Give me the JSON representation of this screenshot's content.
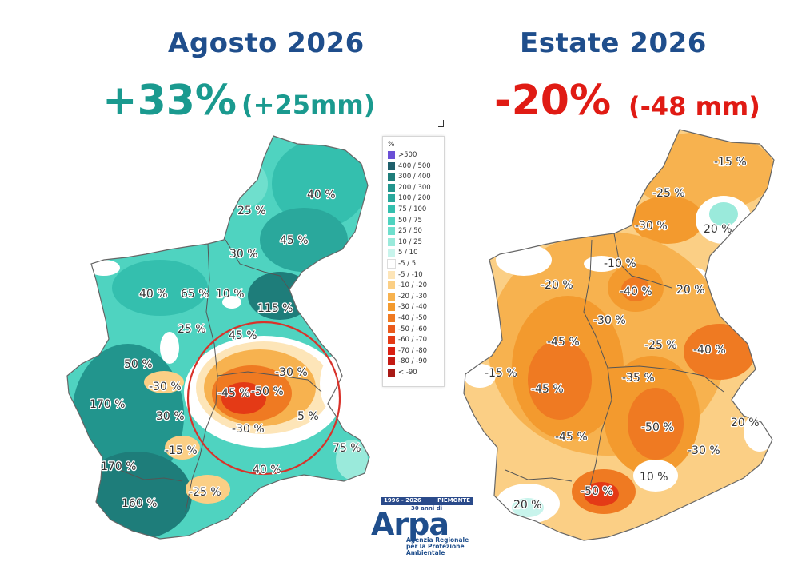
{
  "left_panel": {
    "title": "Agosto 2026",
    "headline": "+33%",
    "headline_mm": "(+25mm)",
    "labels": [
      "40 %",
      "25 %",
      "45 %",
      "30 %",
      "40 %",
      "65 %",
      "10 %",
      "115 %",
      "25 %",
      "45 %",
      "50 %",
      "-30 %",
      "-45 %",
      "-50 %",
      "-30 %",
      "170 %",
      "30 %",
      "5 %",
      "-30 %",
      "-15 %",
      "75 %",
      "170 %",
      "40 %",
      "-25 %",
      "160 %"
    ]
  },
  "right_panel": {
    "title": "Estate 2026",
    "headline": "-20%",
    "headline_mm": "(-48 mm)",
    "labels": [
      "-15 %",
      "-25 %",
      "-30 %",
      "20 %",
      "-10 %",
      "-20 %",
      "-40 %",
      "20 %",
      "-30 %",
      "-45 %",
      "-25 %",
      "-40 %",
      "-15 %",
      "-35 %",
      "-45 %",
      "-45 %",
      "-50 %",
      "20 %",
      "-30 %",
      "10 %",
      "-50 %",
      "20 %"
    ]
  },
  "legend": {
    "unit": "%",
    "items": [
      {
        "label": ">500",
        "color": "#6a4fd6"
      },
      {
        "label": "400 / 500",
        "color": "#1f5f6b"
      },
      {
        "label": "300 / 400",
        "color": "#1e7d7a"
      },
      {
        "label": "200 / 300",
        "color": "#22958d"
      },
      {
        "label": "100 / 200",
        "color": "#2aa89c"
      },
      {
        "label": "75 / 100",
        "color": "#34bfae"
      },
      {
        "label": "50 / 75",
        "color": "#4fd3c0"
      },
      {
        "label": "25 / 50",
        "color": "#6fdfcd"
      },
      {
        "label": "10 / 25",
        "color": "#9aeadb"
      },
      {
        "label": "5 / 10",
        "color": "#c8f4ec"
      },
      {
        "label": "-5 / 5",
        "color": "#ffffff"
      },
      {
        "label": "-5 / -10",
        "color": "#fde5b8"
      },
      {
        "label": "-10 / -20",
        "color": "#fbcf85"
      },
      {
        "label": "-20 / -30",
        "color": "#f7b24f"
      },
      {
        "label": "-30 / -40",
        "color": "#f39a2e"
      },
      {
        "label": "-40 / -50",
        "color": "#ef7a22"
      },
      {
        "label": "-50 / -60",
        "color": "#ea5a1c"
      },
      {
        "label": "-60 / -70",
        "color": "#e43a16"
      },
      {
        "label": "-70 / -80",
        "color": "#d91f12"
      },
      {
        "label": "-80 / -90",
        "color": "#c41a14"
      },
      {
        "label": "< -90",
        "color": "#a81915"
      }
    ]
  },
  "logo": {
    "band_left": "1996 - 2026",
    "band_right": "PIEMONTE",
    "anniversary": "30 anni di",
    "word": "Arpa",
    "subtitle_1": "Agenzia Regionale",
    "subtitle_2": "per la Protezione Ambientale"
  },
  "colors": {
    "title": "#1f4e8c",
    "positive": "#1a9a8f",
    "negative": "#e01b14",
    "circle": "#d9322a"
  }
}
